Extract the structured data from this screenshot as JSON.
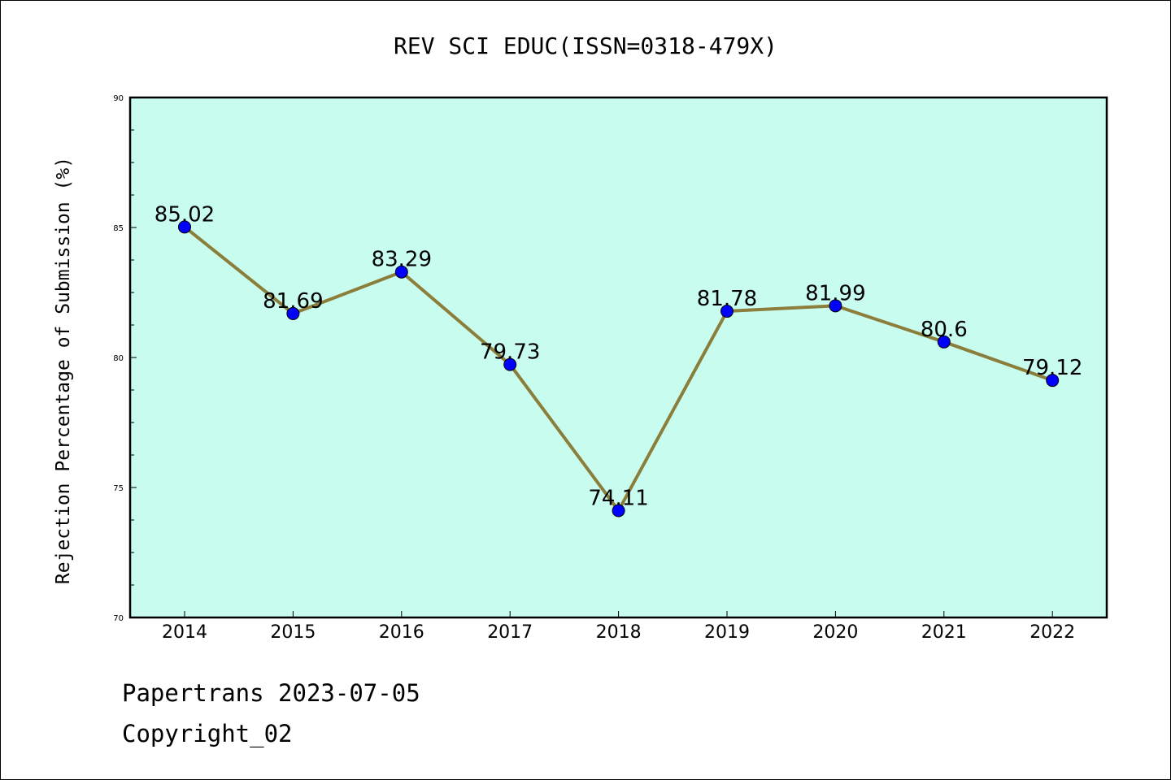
{
  "chart_data": {
    "type": "line",
    "title": "REV SCI EDUC(ISSN=0318-479X)",
    "xlabel": "",
    "ylabel": "Rejection Percentage of Submission (%)",
    "x": [
      "2014",
      "2015",
      "2016",
      "2017",
      "2018",
      "2019",
      "2020",
      "2021",
      "2022"
    ],
    "series": [
      {
        "values": [
          85.02,
          81.69,
          83.29,
          79.73,
          74.11,
          81.78,
          81.99,
          80.6,
          79.12
        ],
        "data_labels": [
          "85.02",
          "81.69",
          "83.29",
          "79.73",
          "74.11",
          "81.78",
          "81.99",
          "80.6",
          "79.12"
        ],
        "line_color": "#8b7d3a",
        "marker_color": "#0000ff"
      }
    ],
    "ylim": [
      70,
      90
    ],
    "yticks": [
      "70",
      "75",
      "80",
      "85",
      "90"
    ],
    "plot_background": "#c8fcee",
    "grid": false
  },
  "footer": {
    "source": "Papertrans 2023-07-05",
    "copyright": "Copyright_02"
  }
}
